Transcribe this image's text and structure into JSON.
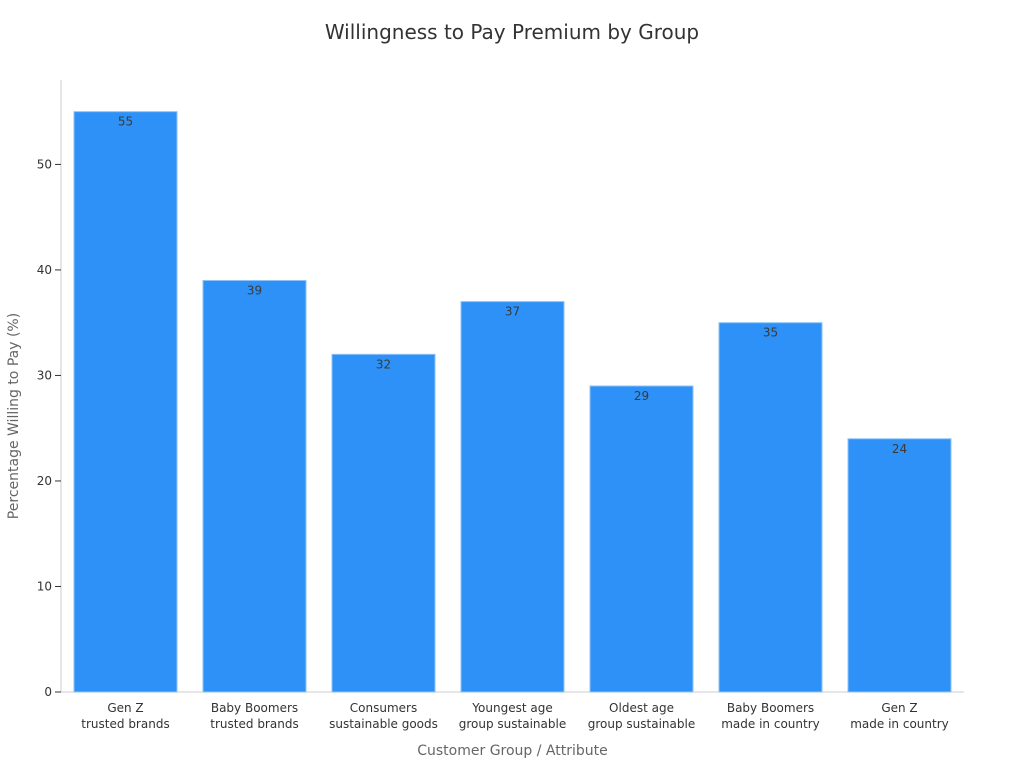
{
  "chart_data": {
    "type": "bar",
    "title": "Willingness to Pay Premium by Group",
    "xlabel": "Customer Group / Attribute",
    "ylabel": "Percentage Willing to Pay (%)",
    "categories": [
      [
        "Gen Z",
        "trusted brands"
      ],
      [
        "Baby Boomers",
        "trusted brands"
      ],
      [
        "Consumers",
        "sustainable goods"
      ],
      [
        "Youngest age",
        "group sustainable"
      ],
      [
        "Oldest age",
        "group sustainable"
      ],
      [
        "Baby Boomers",
        "made in country"
      ],
      [
        "Gen Z",
        "made in country"
      ]
    ],
    "values": [
      55,
      39,
      32,
      37,
      29,
      35,
      24
    ],
    "ylim": [
      0,
      58
    ],
    "yticks": [
      0,
      10,
      20,
      30,
      40,
      50
    ],
    "bar_color": "#2e91f7",
    "grid": false,
    "legend": "none"
  }
}
